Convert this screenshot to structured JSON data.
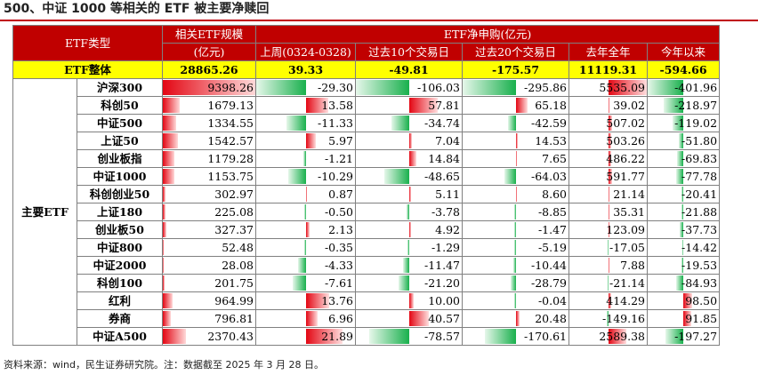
{
  "title": "500、中证 1000 等相关的 ETF 被主要净赎回",
  "footer": "资料来源：wind，民生证券研究院。注：数据截至 2025 年 3 月 28 日。",
  "header": {
    "col0": "ETF类型",
    "col1a": "相关ETF规模",
    "col1b": "(亿元)",
    "group": "ETF净申购(亿元)",
    "cols": [
      "上周(0324-0328)",
      "过去10个交易日",
      "过去20个交易日",
      "去年全年",
      "今年以来"
    ]
  },
  "colors": {
    "header_bg": "#c00000",
    "total_bg": "#ffff00",
    "pos_bar": "#e30613",
    "neg_bar": "#19b04d"
  },
  "total": {
    "label": "ETF整体",
    "size": "28865.26",
    "values": [
      "39.33",
      "-49.81",
      "-175.57",
      "11119.31",
      "-594.66"
    ]
  },
  "group_label": "主要ETF",
  "rows": [
    {
      "name": "沪深300",
      "size": "9398.26",
      "values": [
        "-29.30",
        "-106.03",
        "-295.86",
        "5535.09",
        "-401.96"
      ]
    },
    {
      "name": "科创50",
      "size": "1679.13",
      "values": [
        "13.58",
        "57.81",
        "65.18",
        "39.02",
        "-218.97"
      ]
    },
    {
      "name": "中证500",
      "size": "1334.55",
      "values": [
        "-11.33",
        "-34.74",
        "-42.59",
        "507.02",
        "-119.02"
      ]
    },
    {
      "name": "上证50",
      "size": "1542.57",
      "values": [
        "5.97",
        "7.04",
        "14.53",
        "503.26",
        "-51.80"
      ]
    },
    {
      "name": "创业板指",
      "size": "1179.28",
      "values": [
        "-1.21",
        "14.84",
        "7.65",
        "486.22",
        "-69.83"
      ]
    },
    {
      "name": "中证1000",
      "size": "1153.75",
      "values": [
        "-10.29",
        "-48.65",
        "-64.03",
        "591.77",
        "-77.78"
      ]
    },
    {
      "name": "科创创业50",
      "size": "302.97",
      "values": [
        "0.87",
        "5.11",
        "8.60",
        "21.14",
        "-20.41"
      ]
    },
    {
      "name": "上证180",
      "size": "225.08",
      "values": [
        "-0.50",
        "-3.78",
        "-8.85",
        "35.31",
        "-21.88"
      ]
    },
    {
      "name": "创业板50",
      "size": "327.37",
      "values": [
        "2.13",
        "4.92",
        "-1.47",
        "123.09",
        "-37.73"
      ]
    },
    {
      "name": "中证800",
      "size": "52.48",
      "values": [
        "-0.35",
        "-1.29",
        "-5.19",
        "-17.05",
        "-14.42"
      ]
    },
    {
      "name": "中证2000",
      "size": "28.08",
      "values": [
        "-4.33",
        "-11.47",
        "-10.44",
        "7.88",
        "-19.53"
      ]
    },
    {
      "name": "科创100",
      "size": "201.75",
      "values": [
        "-7.61",
        "-21.20",
        "-28.79",
        "-21.14",
        "-84.93"
      ]
    },
    {
      "name": "红利",
      "size": "964.99",
      "values": [
        "13.76",
        "10.00",
        "-0.04",
        "414.29",
        "98.50"
      ]
    },
    {
      "name": "券商",
      "size": "796.81",
      "values": [
        "6.96",
        "40.57",
        "20.48",
        "-149.16",
        "91.85"
      ]
    },
    {
      "name": "中证A500",
      "size": "2370.43",
      "values": [
        "21.89",
        "-78.57",
        "-170.61",
        "2589.38",
        "-197.27"
      ]
    }
  ]
}
